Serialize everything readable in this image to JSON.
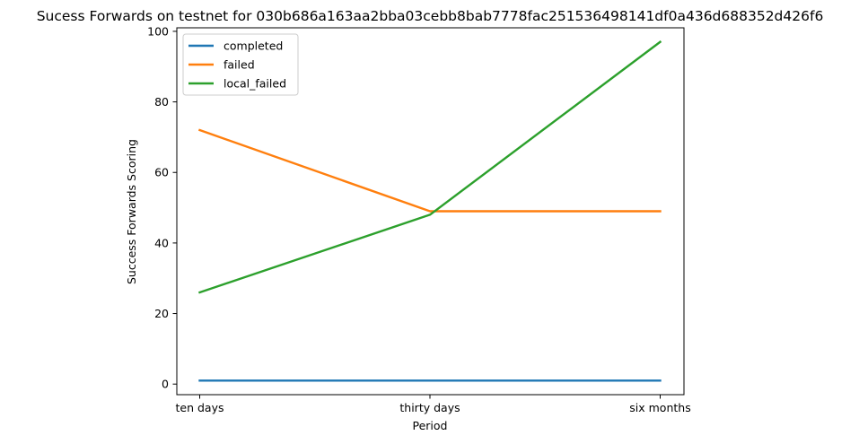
{
  "chart_data": {
    "type": "line",
    "title": "Sucess Forwards on testnet for 030b686a163aa2bba03cebb8bab7778fac251536498141df0a436d688352d426f6",
    "xlabel": "Period",
    "ylabel": "Success Forwards Scoring",
    "categories": [
      "ten days",
      "thirty days",
      "six months"
    ],
    "ylim": [
      -3,
      101
    ],
    "yticks": [
      0,
      20,
      40,
      60,
      80,
      100
    ],
    "grid": false,
    "legend_position": "top-left",
    "series": [
      {
        "name": "completed",
        "color": "#1f77b4",
        "values": [
          1,
          1,
          1
        ]
      },
      {
        "name": "failed",
        "color": "#ff7f0e",
        "values": [
          72,
          49,
          49
        ]
      },
      {
        "name": "local_failed",
        "color": "#2ca02c",
        "values": [
          26,
          48,
          97
        ]
      }
    ]
  }
}
